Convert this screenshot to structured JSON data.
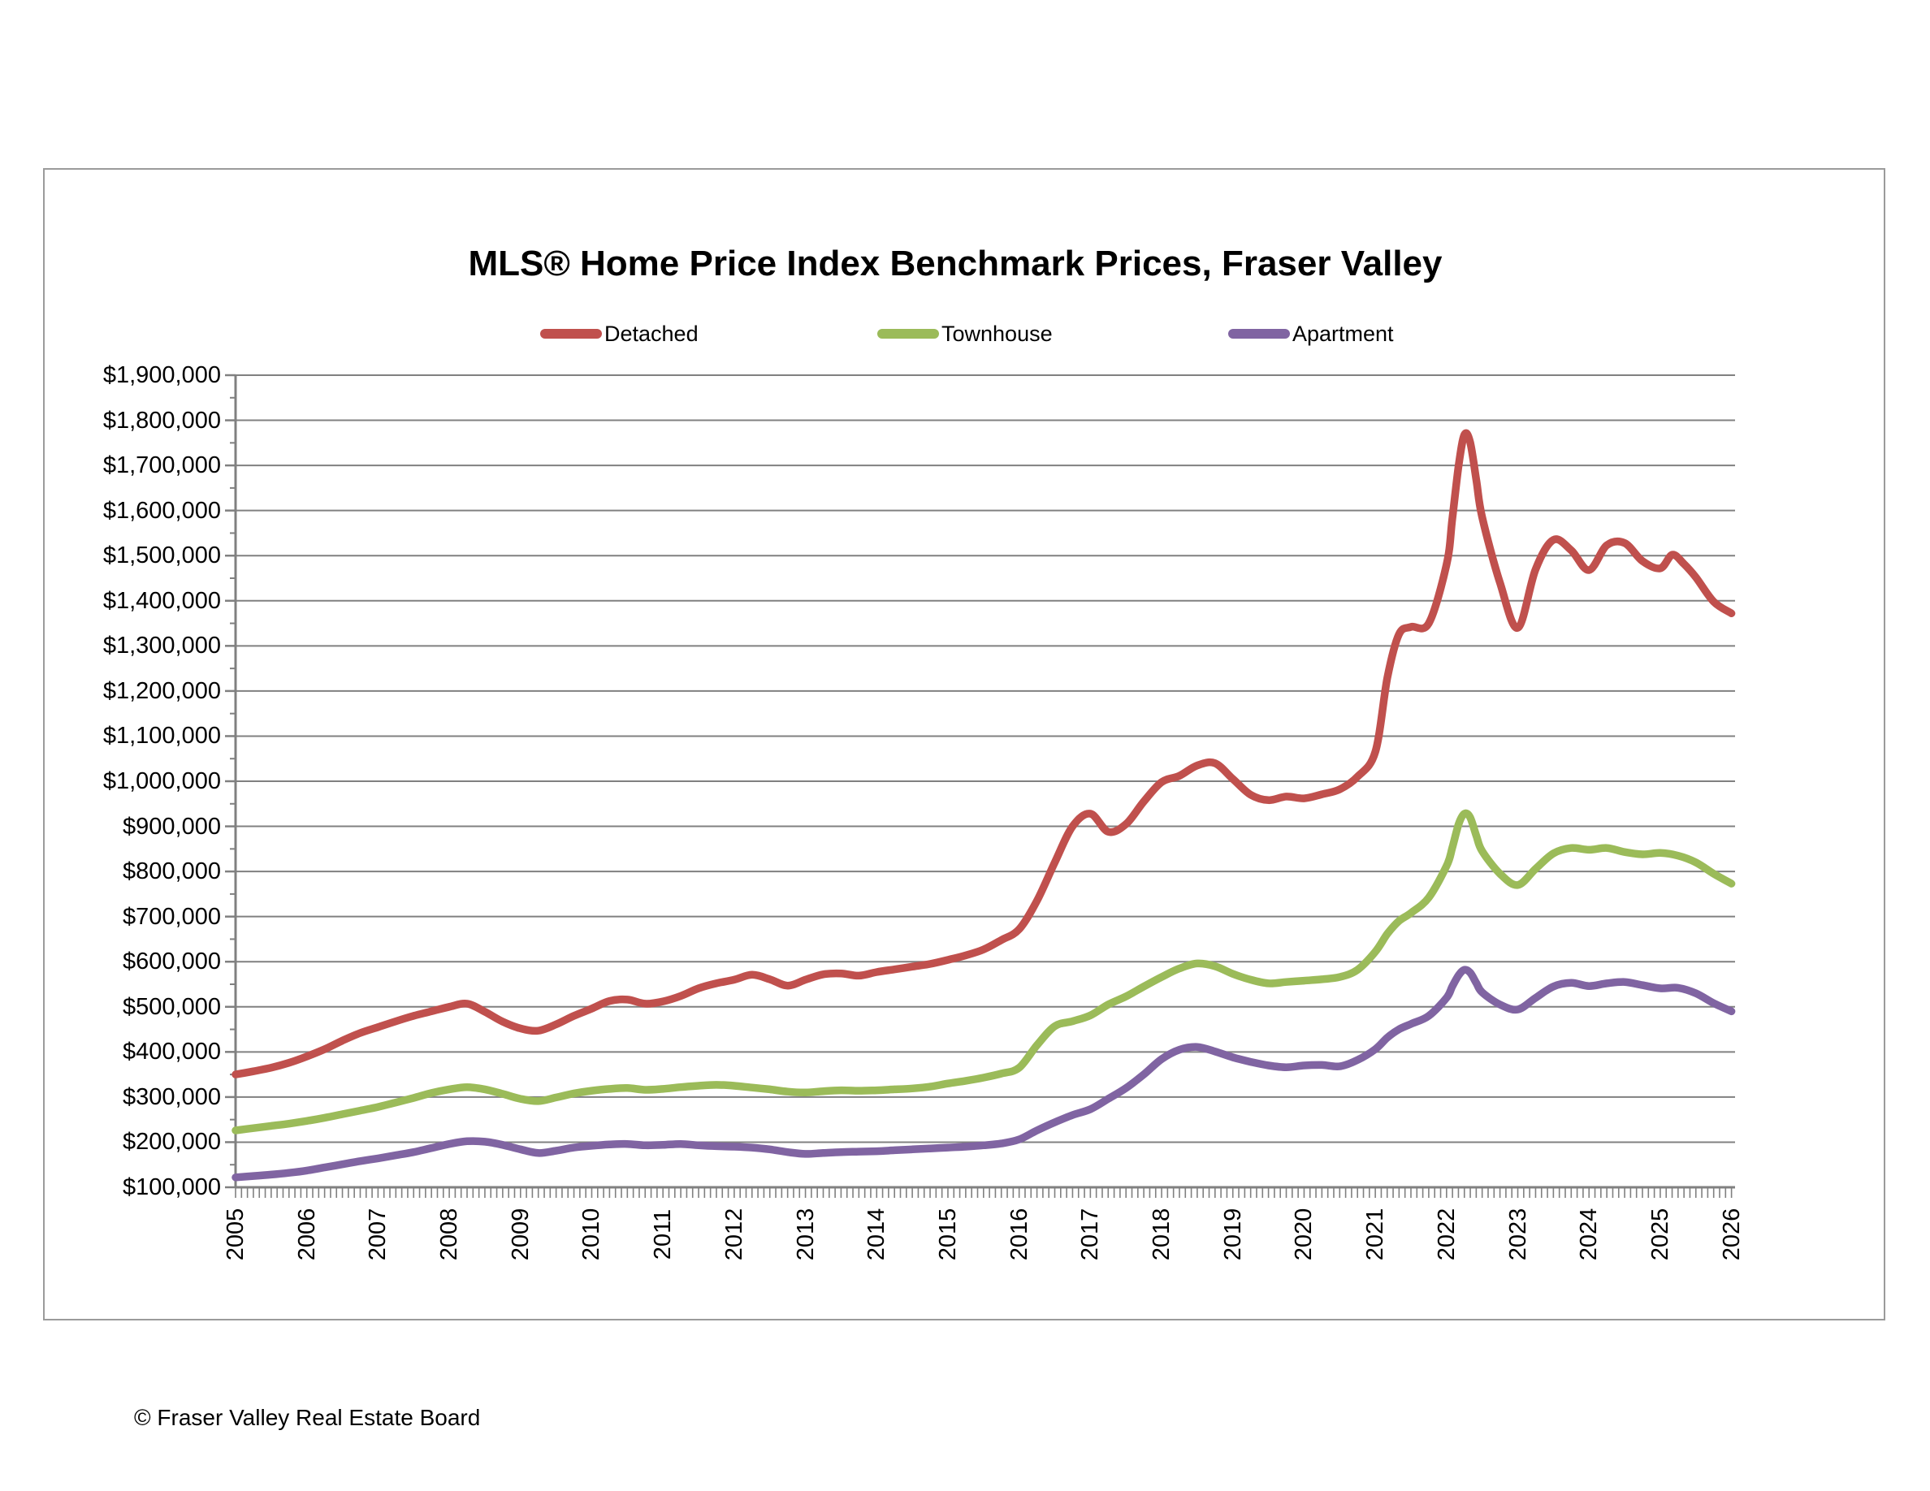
{
  "title": "MLS® Home Price Index Benchmark Prices, Fraser Valley",
  "footer": "© Fraser Valley Real Estate Board",
  "legend": [
    {
      "label": "Detached",
      "color": "#C0504D"
    },
    {
      "label": "Townhouse",
      "color": "#9BBB59"
    },
    {
      "label": "Apartment",
      "color": "#8064A2"
    }
  ],
  "colors": {
    "grid": "#808080",
    "axis": "#808080",
    "border": "#9b9b9b",
    "background": "#FFFFFF"
  },
  "chart_data": {
    "type": "line",
    "title": "MLS® Home Price Index Benchmark Prices, Fraser Valley",
    "xlabel": "",
    "ylabel": "",
    "ylim": [
      100000,
      1900000
    ],
    "y_tick_step": 100000,
    "y_minor_tick_step": 50000,
    "y_tick_format": "$1,234,567",
    "xlim": [
      2005,
      2026.05
    ],
    "x_tick_years": [
      2005,
      2006,
      2007,
      2008,
      2009,
      2010,
      2011,
      2012,
      2013,
      2014,
      2015,
      2016,
      2017,
      2018,
      2019,
      2020,
      2021,
      2022,
      2023,
      2024,
      2025,
      2026
    ],
    "x_minor_tick_interval_months": 1,
    "grid": "horizontal-major",
    "legend_position": "top",
    "series": [
      {
        "name": "Detached",
        "color": "#C0504D",
        "points": [
          [
            2005.0,
            350000
          ],
          [
            2005.25,
            357000
          ],
          [
            2005.5,
            365000
          ],
          [
            2005.75,
            376000
          ],
          [
            2006.0,
            390000
          ],
          [
            2006.25,
            406000
          ],
          [
            2006.5,
            425000
          ],
          [
            2006.75,
            442000
          ],
          [
            2007.0,
            455000
          ],
          [
            2007.25,
            468000
          ],
          [
            2007.5,
            480000
          ],
          [
            2007.75,
            490000
          ],
          [
            2008.0,
            500000
          ],
          [
            2008.25,
            507000
          ],
          [
            2008.5,
            489000
          ],
          [
            2008.75,
            467000
          ],
          [
            2009.0,
            452000
          ],
          [
            2009.25,
            447000
          ],
          [
            2009.5,
            461000
          ],
          [
            2009.75,
            480000
          ],
          [
            2010.0,
            496000
          ],
          [
            2010.25,
            513000
          ],
          [
            2010.5,
            516000
          ],
          [
            2010.75,
            507000
          ],
          [
            2011.0,
            512000
          ],
          [
            2011.25,
            524000
          ],
          [
            2011.5,
            541000
          ],
          [
            2011.75,
            552000
          ],
          [
            2012.0,
            560000
          ],
          [
            2012.25,
            571000
          ],
          [
            2012.5,
            561000
          ],
          [
            2012.75,
            547000
          ],
          [
            2013.0,
            560000
          ],
          [
            2013.25,
            572000
          ],
          [
            2013.5,
            574000
          ],
          [
            2013.75,
            569000
          ],
          [
            2014.0,
            577000
          ],
          [
            2014.25,
            583000
          ],
          [
            2014.5,
            589000
          ],
          [
            2014.75,
            595000
          ],
          [
            2015.0,
            604000
          ],
          [
            2015.25,
            614000
          ],
          [
            2015.5,
            627000
          ],
          [
            2015.75,
            648000
          ],
          [
            2016.0,
            672000
          ],
          [
            2016.25,
            735000
          ],
          [
            2016.5,
            820000
          ],
          [
            2016.75,
            900000
          ],
          [
            2017.0,
            928000
          ],
          [
            2017.25,
            888000
          ],
          [
            2017.5,
            905000
          ],
          [
            2017.75,
            955000
          ],
          [
            2018.0,
            998000
          ],
          [
            2018.25,
            1012000
          ],
          [
            2018.5,
            1035000
          ],
          [
            2018.75,
            1040000
          ],
          [
            2019.0,
            1005000
          ],
          [
            2019.25,
            970000
          ],
          [
            2019.5,
            958000
          ],
          [
            2019.75,
            966000
          ],
          [
            2020.0,
            962000
          ],
          [
            2020.25,
            971000
          ],
          [
            2020.5,
            982000
          ],
          [
            2020.75,
            1010000
          ],
          [
            2021.0,
            1065000
          ],
          [
            2021.17,
            1230000
          ],
          [
            2021.33,
            1325000
          ],
          [
            2021.5,
            1342000
          ],
          [
            2021.75,
            1350000
          ],
          [
            2022.0,
            1480000
          ],
          [
            2022.08,
            1580000
          ],
          [
            2022.17,
            1700000
          ],
          [
            2022.25,
            1768000
          ],
          [
            2022.33,
            1752000
          ],
          [
            2022.42,
            1665000
          ],
          [
            2022.5,
            1585000
          ],
          [
            2022.75,
            1440000
          ],
          [
            2023.0,
            1340000
          ],
          [
            2023.25,
            1470000
          ],
          [
            2023.5,
            1535000
          ],
          [
            2023.75,
            1512000
          ],
          [
            2024.0,
            1468000
          ],
          [
            2024.25,
            1523000
          ],
          [
            2024.5,
            1528000
          ],
          [
            2024.75,
            1488000
          ],
          [
            2025.0,
            1472000
          ],
          [
            2025.17,
            1502000
          ],
          [
            2025.33,
            1482000
          ],
          [
            2025.5,
            1452000
          ],
          [
            2025.75,
            1398000
          ],
          [
            2026.0,
            1372000
          ]
        ]
      },
      {
        "name": "Townhouse",
        "color": "#9BBB59",
        "points": [
          [
            2005.0,
            226000
          ],
          [
            2005.25,
            231000
          ],
          [
            2005.5,
            236000
          ],
          [
            2005.75,
            241000
          ],
          [
            2006.0,
            247000
          ],
          [
            2006.25,
            254000
          ],
          [
            2006.5,
            262000
          ],
          [
            2006.75,
            270000
          ],
          [
            2007.0,
            278000
          ],
          [
            2007.25,
            288000
          ],
          [
            2007.5,
            298000
          ],
          [
            2007.75,
            309000
          ],
          [
            2008.0,
            317000
          ],
          [
            2008.25,
            322000
          ],
          [
            2008.5,
            317000
          ],
          [
            2008.75,
            307000
          ],
          [
            2009.0,
            296000
          ],
          [
            2009.25,
            291000
          ],
          [
            2009.5,
            299000
          ],
          [
            2009.75,
            308000
          ],
          [
            2010.0,
            314000
          ],
          [
            2010.25,
            318000
          ],
          [
            2010.5,
            320000
          ],
          [
            2010.75,
            316000
          ],
          [
            2011.0,
            318000
          ],
          [
            2011.25,
            322000
          ],
          [
            2011.5,
            325000
          ],
          [
            2011.75,
            327000
          ],
          [
            2012.0,
            325000
          ],
          [
            2012.25,
            321000
          ],
          [
            2012.5,
            317000
          ],
          [
            2012.75,
            312000
          ],
          [
            2013.0,
            310000
          ],
          [
            2013.25,
            313000
          ],
          [
            2013.5,
            315000
          ],
          [
            2013.75,
            314000
          ],
          [
            2014.0,
            315000
          ],
          [
            2014.25,
            317000
          ],
          [
            2014.5,
            319000
          ],
          [
            2014.75,
            323000
          ],
          [
            2015.0,
            330000
          ],
          [
            2015.25,
            336000
          ],
          [
            2015.5,
            343000
          ],
          [
            2015.75,
            352000
          ],
          [
            2016.0,
            365000
          ],
          [
            2016.25,
            415000
          ],
          [
            2016.5,
            457000
          ],
          [
            2016.75,
            468000
          ],
          [
            2017.0,
            481000
          ],
          [
            2017.25,
            505000
          ],
          [
            2017.5,
            523000
          ],
          [
            2017.75,
            545000
          ],
          [
            2018.0,
            566000
          ],
          [
            2018.25,
            585000
          ],
          [
            2018.5,
            596000
          ],
          [
            2018.75,
            590000
          ],
          [
            2019.0,
            573000
          ],
          [
            2019.25,
            560000
          ],
          [
            2019.5,
            552000
          ],
          [
            2019.75,
            555000
          ],
          [
            2020.0,
            558000
          ],
          [
            2020.25,
            561000
          ],
          [
            2020.5,
            566000
          ],
          [
            2020.75,
            582000
          ],
          [
            2021.0,
            622000
          ],
          [
            2021.17,
            662000
          ],
          [
            2021.33,
            690000
          ],
          [
            2021.5,
            708000
          ],
          [
            2021.75,
            742000
          ],
          [
            2022.0,
            812000
          ],
          [
            2022.08,
            852000
          ],
          [
            2022.17,
            905000
          ],
          [
            2022.25,
            928000
          ],
          [
            2022.33,
            920000
          ],
          [
            2022.42,
            878000
          ],
          [
            2022.5,
            845000
          ],
          [
            2022.75,
            795000
          ],
          [
            2023.0,
            770000
          ],
          [
            2023.25,
            806000
          ],
          [
            2023.5,
            840000
          ],
          [
            2023.75,
            852000
          ],
          [
            2024.0,
            848000
          ],
          [
            2024.25,
            852000
          ],
          [
            2024.5,
            843000
          ],
          [
            2024.75,
            838000
          ],
          [
            2025.0,
            841000
          ],
          [
            2025.25,
            835000
          ],
          [
            2025.5,
            820000
          ],
          [
            2025.75,
            795000
          ],
          [
            2026.0,
            773000
          ]
        ]
      },
      {
        "name": "Apartment",
        "color": "#8064A2",
        "points": [
          [
            2005.0,
            122000
          ],
          [
            2005.25,
            125000
          ],
          [
            2005.5,
            128000
          ],
          [
            2005.75,
            132000
          ],
          [
            2006.0,
            137000
          ],
          [
            2006.25,
            144000
          ],
          [
            2006.5,
            151000
          ],
          [
            2006.75,
            158000
          ],
          [
            2007.0,
            164000
          ],
          [
            2007.25,
            171000
          ],
          [
            2007.5,
            178000
          ],
          [
            2007.75,
            187000
          ],
          [
            2008.0,
            196000
          ],
          [
            2008.25,
            202000
          ],
          [
            2008.5,
            201000
          ],
          [
            2008.75,
            194000
          ],
          [
            2009.0,
            184000
          ],
          [
            2009.25,
            176000
          ],
          [
            2009.5,
            181000
          ],
          [
            2009.75,
            188000
          ],
          [
            2010.0,
            192000
          ],
          [
            2010.25,
            195000
          ],
          [
            2010.5,
            196000
          ],
          [
            2010.75,
            193000
          ],
          [
            2011.0,
            194000
          ],
          [
            2011.25,
            196000
          ],
          [
            2011.5,
            193000
          ],
          [
            2011.75,
            191000
          ],
          [
            2012.0,
            190000
          ],
          [
            2012.25,
            188000
          ],
          [
            2012.5,
            184000
          ],
          [
            2012.75,
            178000
          ],
          [
            2013.0,
            174000
          ],
          [
            2013.25,
            176000
          ],
          [
            2013.5,
            178000
          ],
          [
            2013.75,
            179000
          ],
          [
            2014.0,
            180000
          ],
          [
            2014.25,
            182000
          ],
          [
            2014.5,
            184000
          ],
          [
            2014.75,
            186000
          ],
          [
            2015.0,
            188000
          ],
          [
            2015.25,
            190000
          ],
          [
            2015.5,
            193000
          ],
          [
            2015.75,
            197000
          ],
          [
            2016.0,
            206000
          ],
          [
            2016.25,
            226000
          ],
          [
            2016.5,
            244000
          ],
          [
            2016.75,
            260000
          ],
          [
            2017.0,
            273000
          ],
          [
            2017.25,
            296000
          ],
          [
            2017.5,
            320000
          ],
          [
            2017.75,
            350000
          ],
          [
            2018.0,
            384000
          ],
          [
            2018.25,
            405000
          ],
          [
            2018.5,
            411000
          ],
          [
            2018.75,
            401000
          ],
          [
            2019.0,
            388000
          ],
          [
            2019.25,
            378000
          ],
          [
            2019.5,
            370000
          ],
          [
            2019.75,
            366000
          ],
          [
            2020.0,
            370000
          ],
          [
            2020.25,
            371000
          ],
          [
            2020.5,
            368000
          ],
          [
            2020.75,
            382000
          ],
          [
            2021.0,
            406000
          ],
          [
            2021.17,
            432000
          ],
          [
            2021.33,
            450000
          ],
          [
            2021.5,
            462000
          ],
          [
            2021.75,
            480000
          ],
          [
            2022.0,
            520000
          ],
          [
            2022.08,
            545000
          ],
          [
            2022.17,
            570000
          ],
          [
            2022.25,
            582000
          ],
          [
            2022.33,
            576000
          ],
          [
            2022.42,
            552000
          ],
          [
            2022.5,
            532000
          ],
          [
            2022.75,
            505000
          ],
          [
            2023.0,
            494000
          ],
          [
            2023.25,
            520000
          ],
          [
            2023.5,
            545000
          ],
          [
            2023.75,
            553000
          ],
          [
            2024.0,
            546000
          ],
          [
            2024.25,
            552000
          ],
          [
            2024.5,
            555000
          ],
          [
            2024.75,
            548000
          ],
          [
            2025.0,
            541000
          ],
          [
            2025.25,
            542000
          ],
          [
            2025.5,
            530000
          ],
          [
            2025.75,
            508000
          ],
          [
            2026.0,
            490000
          ]
        ]
      }
    ]
  }
}
